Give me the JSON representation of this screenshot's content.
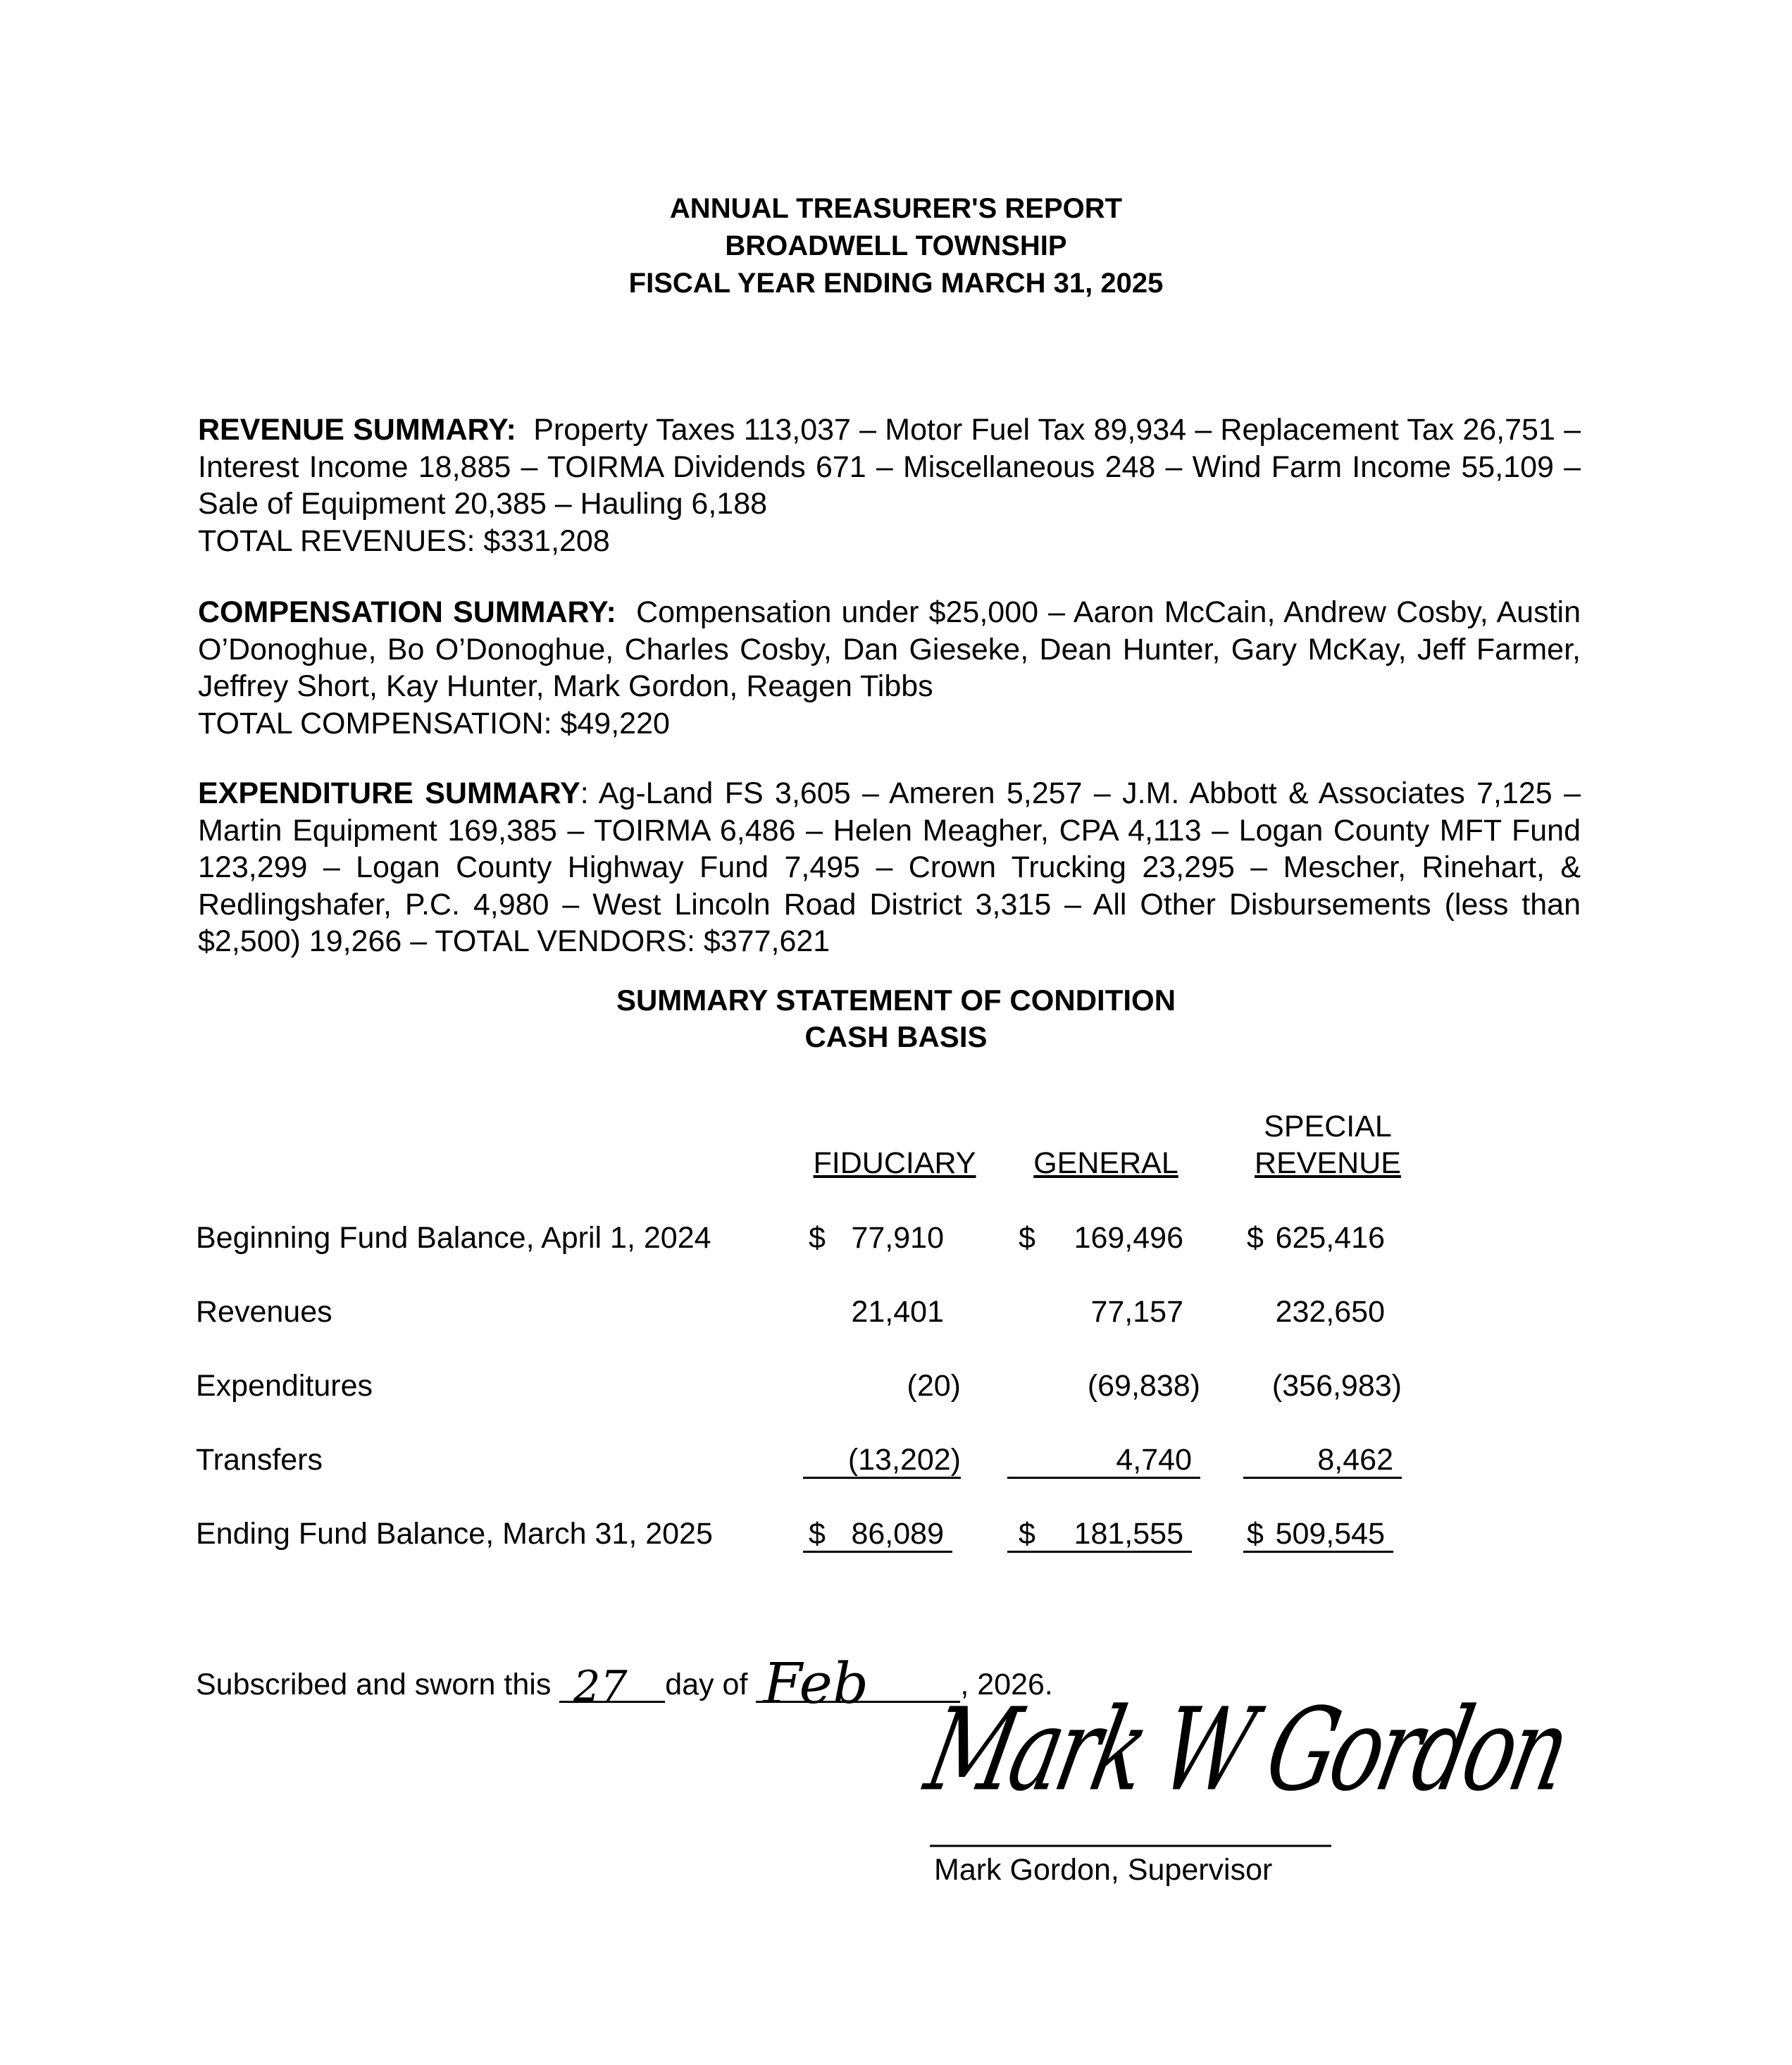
{
  "header": {
    "line1": "ANNUAL TREASURER'S REPORT",
    "line2": "BROADWELL TOWNSHIP",
    "line3": "FISCAL YEAR ENDING MARCH 31, 2025"
  },
  "revenue": {
    "label": "REVENUE SUMMARY:",
    "text": "Property Taxes 113,037 – Motor Fuel Tax 89,934 – Replacement Tax 26,751 – Interest Income 18,885 – TOIRMA Dividends 671 – Miscellaneous 248 – Wind Farm Income 55,109 – Sale of Equipment 20,385 – Hauling 6,188",
    "total": "TOTAL REVENUES:  $331,208"
  },
  "compensation": {
    "label": "COMPENSATION SUMMARY:",
    "text": "Compensation under $25,000 – Aaron McCain, Andrew Cosby, Austin O’Donoghue, Bo O’Donoghue, Charles Cosby, Dan Gieseke, Dean Hunter, Gary McKay, Jeff Farmer, Jeffrey Short, Kay Hunter, Mark Gordon, Reagen Tibbs",
    "total": "TOTAL COMPENSATION: $49,220"
  },
  "expenditure": {
    "label": "EXPENDITURE SUMMARY",
    "text": ": Ag-Land FS 3,605 – Ameren 5,257 – J.M. Abbott & Associates 7,125 – Martin Equipment 169,385 – TOIRMA 6,486 – Helen Meagher, CPA 4,113 – Logan County MFT Fund 123,299 – Logan County Highway Fund 7,495 – Crown Trucking 23,295 – Mescher, Rinehart, & Redlingshafer, P.C. 4,980 – West Lincoln Road District 3,315 – All Other Disbursements (less than $2,500) 19,266 – TOTAL VENDORS: $377,621"
  },
  "statement": {
    "title1": "SUMMARY STATEMENT OF CONDITION",
    "title2": "CASH BASIS",
    "columns": [
      "FIDUCIARY",
      "GENERAL",
      "SPECIAL",
      "REVENUE"
    ],
    "rows": [
      {
        "label": "Beginning Fund Balance, April 1, 2024",
        "c1_sym": "$",
        "c1": "77,910",
        "c2_sym": "$",
        "c2": "169,496",
        "c3_sym": "$",
        "c3": "625,416"
      },
      {
        "label": "Revenues",
        "c1": "21,401",
        "c2": "77,157",
        "c3": "232,650"
      },
      {
        "label": "Expenditures",
        "c1": "(20)",
        "c2": "(69,838)",
        "c3": "(356,983)"
      },
      {
        "label": "Transfers",
        "c1": "(13,202)",
        "c2": "4,740",
        "c3": "8,462"
      },
      {
        "label": "Ending Fund Balance, March 31, 2025",
        "c1_sym": "$",
        "c1": "86,089",
        "c2_sym": "$",
        "c2": "181,555",
        "c3_sym": "$",
        "c3": "509,545"
      }
    ]
  },
  "oath": {
    "prefix": "Subscribed and sworn this",
    "day": "27",
    "middle": "day of",
    "month": "Feb",
    "year": ", 2026."
  },
  "signature": {
    "name": "Mark Gordon, Supervisor",
    "handwritten": "Mark W Gordon"
  }
}
